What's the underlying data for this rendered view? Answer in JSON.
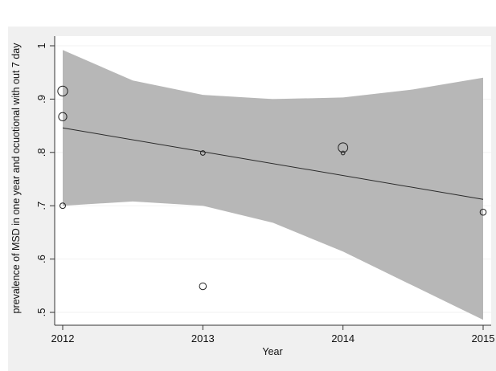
{
  "chart_data": {
    "type": "scatter",
    "title": "",
    "xlabel": "Year",
    "ylabel": "prevalence of MSD in one year and ocuotional with out 7  day",
    "xlim": [
      2012,
      2015
    ],
    "ylim": [
      0.5,
      1.0
    ],
    "grid": true,
    "legend": "none",
    "x_ticks": [
      {
        "value": 2012,
        "label": "2012"
      },
      {
        "value": 2013,
        "label": "2013"
      },
      {
        "value": 2014,
        "label": "2014"
      },
      {
        "value": 2015,
        "label": "2015"
      }
    ],
    "y_ticks": [
      {
        "value": 0.5,
        "label": ".5"
      },
      {
        "value": 0.6,
        "label": ".6"
      },
      {
        "value": 0.7,
        "label": ".7"
      },
      {
        "value": 0.8,
        "label": ".8"
      },
      {
        "value": 0.9,
        "label": ".9"
      },
      {
        "value": 1.0,
        "label": "1"
      }
    ],
    "points": [
      {
        "x": 2012,
        "y": 0.915,
        "weight": 3.0
      },
      {
        "x": 2012,
        "y": 0.867,
        "weight": 2.0
      },
      {
        "x": 2012,
        "y": 0.7,
        "weight": 0.8
      },
      {
        "x": 2013,
        "y": 0.799,
        "weight": 0.5
      },
      {
        "x": 2013,
        "y": 0.549,
        "weight": 1.3
      },
      {
        "x": 2014,
        "y": 0.809,
        "weight": 2.8
      },
      {
        "x": 2014,
        "y": 0.799,
        "weight": 0.3
      },
      {
        "x": 2015,
        "y": 0.688,
        "weight": 1.0
      }
    ],
    "fit_line": {
      "x": [
        2012,
        2015
      ],
      "y": [
        0.846,
        0.712
      ]
    },
    "confidence_band": {
      "x": [
        2012,
        2012.5,
        2013,
        2013.5,
        2014,
        2014.5,
        2015
      ],
      "upper": [
        0.992,
        0.935,
        0.908,
        0.9,
        0.903,
        0.918,
        0.94
      ],
      "lower": [
        0.7,
        0.708,
        0.7,
        0.668,
        0.614,
        0.55,
        0.486
      ]
    },
    "colors": {
      "band": "#b7b7b7",
      "line": "#2a2a2a",
      "marker": "#222222",
      "background": "#f0f0f0",
      "grid": "#f2f2f2"
    }
  }
}
